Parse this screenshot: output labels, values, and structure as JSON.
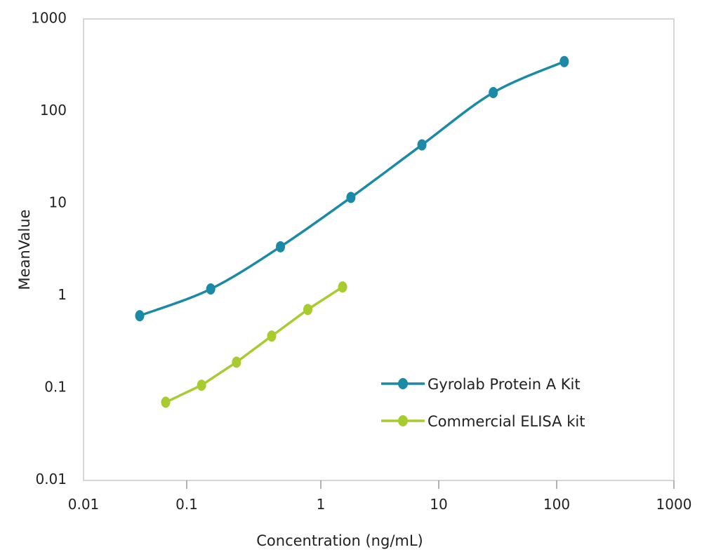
{
  "chart_data": {
    "type": "line",
    "title": "",
    "xlabel": "Concentration (ng/mL)",
    "ylabel": "MeanValue",
    "x_scale": "log",
    "y_scale": "log",
    "xlim": [
      0.01,
      1000
    ],
    "ylim": [
      0.01,
      1000
    ],
    "x_ticks": [
      "0.01",
      "0.1",
      "1",
      "10",
      "100",
      "1000"
    ],
    "y_ticks": [
      "1000",
      "100",
      "10",
      "1",
      "0.1",
      "0.01"
    ],
    "grid": false,
    "legend_position": "bottom-right",
    "series": [
      {
        "name": "Gyrolab Protein A Kit",
        "color": "#1a8aa6",
        "smooth": true,
        "x": [
          0.035,
          0.151,
          0.5,
          1.8,
          7.2,
          29,
          116
        ],
        "y": [
          0.59,
          1.15,
          3.3,
          11.3,
          42,
          155,
          336
        ]
      },
      {
        "name": "Commercial ELISA kit",
        "color": "#a8cc30",
        "smooth": false,
        "x": [
          0.0625,
          0.129,
          0.235,
          0.43,
          0.8,
          1.53
        ],
        "y": [
          0.068,
          0.104,
          0.185,
          0.355,
          0.69,
          1.21
        ]
      }
    ]
  }
}
